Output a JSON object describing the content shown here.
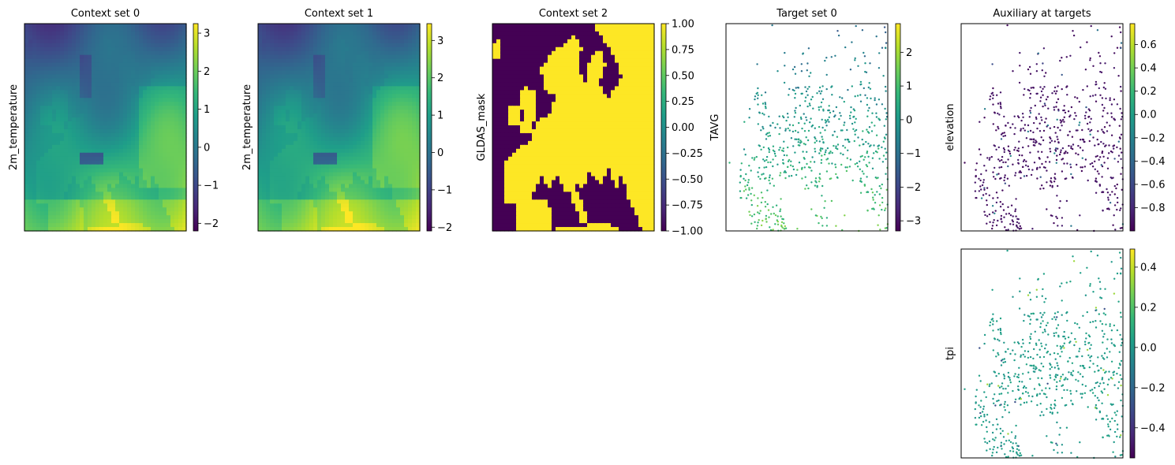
{
  "chart_data": [
    {
      "id": "ctx0",
      "type": "heatmap",
      "title": "Context set 0",
      "ylabel": "2m_temperature",
      "field": "temperature",
      "colorbar": {
        "range": [
          -2.2,
          3.25
        ],
        "ticks": [
          3,
          2,
          1,
          0,
          -1,
          -2
        ],
        "tick_labels": [
          "3",
          "2",
          "1",
          "0",
          "−1",
          "−2"
        ]
      }
    },
    {
      "id": "ctx1",
      "type": "heatmap",
      "title": "Context set 1",
      "ylabel": "2m_temperature",
      "field": "temperature",
      "colorbar": {
        "range": [
          -2.1,
          3.45
        ],
        "ticks": [
          3,
          2,
          1,
          0,
          -1,
          -2
        ],
        "tick_labels": [
          "3",
          "2",
          "1",
          "0",
          "−1",
          "−2"
        ]
      }
    },
    {
      "id": "ctx2",
      "type": "heatmap",
      "title": "Context set 2",
      "ylabel": "GLDAS_mask",
      "field": "land_mask",
      "colorbar": {
        "range": [
          -1.0,
          1.0
        ],
        "ticks": [
          1.0,
          0.75,
          0.5,
          0.25,
          0.0,
          -0.25,
          -0.5,
          -0.75,
          -1.0
        ],
        "tick_labels": [
          "1.00",
          "0.75",
          "0.50",
          "0.25",
          "0.00",
          "−0.25",
          "−0.50",
          "−0.75",
          "−1.00"
        ]
      }
    },
    {
      "id": "tgt0",
      "type": "scatter",
      "title": "Target set 0",
      "ylabel": "TAVG",
      "field": "station_temperature",
      "colorbar": {
        "range": [
          -3.3,
          2.85
        ],
        "ticks": [
          2,
          1,
          0,
          -1,
          -2,
          -3
        ],
        "tick_labels": [
          "2",
          "1",
          "0",
          "−1",
          "−2",
          "−3"
        ]
      }
    },
    {
      "id": "aux0",
      "type": "scatter",
      "title": "Auxiliary at targets",
      "ylabel": "elevation",
      "field": "station_elevation",
      "colorbar": {
        "range": [
          -1.0,
          0.78
        ],
        "ticks": [
          0.6,
          0.4,
          0.2,
          0.0,
          -0.2,
          -0.4,
          -0.6,
          -0.8
        ],
        "tick_labels": [
          "0.6",
          "0.4",
          "0.2",
          "0.0",
          "−0.2",
          "−0.4",
          "−0.6",
          "−0.8"
        ]
      }
    },
    {
      "id": "aux1",
      "type": "scatter",
      "title": "",
      "ylabel": "tpi",
      "field": "station_tpi",
      "colorbar": {
        "range": [
          -0.55,
          0.49
        ],
        "ticks": [
          0.4,
          0.2,
          0.0,
          -0.2,
          -0.4
        ],
        "tick_labels": [
          "0.4",
          "0.2",
          "0.0",
          "−0.2",
          "−0.4"
        ]
      }
    }
  ],
  "colormap": [
    "#440154",
    "#482878",
    "#3e4989",
    "#31688e",
    "#26828e",
    "#1f9e89",
    "#35b779",
    "#6ece58",
    "#b5de2b",
    "#fde725"
  ]
}
